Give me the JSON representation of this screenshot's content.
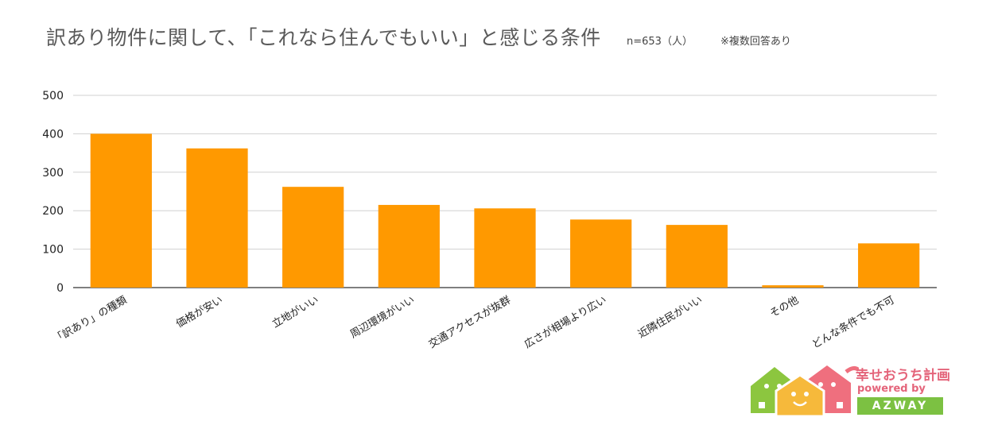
{
  "chart_data": {
    "type": "bar",
    "title": "訳あり物件に関して、「これなら住んでもいい」と感じる条件",
    "subtitle": "n=653（人）",
    "note": "※複数回答あり",
    "categories": [
      "「訳あり」の種類",
      "価格が安い",
      "立地がいい",
      "周辺環境がいい",
      "交通アクセスが抜群",
      "広さが相場より広い",
      "近隣住民がいい",
      "その他",
      "どんな条件でも不可"
    ],
    "values": [
      400,
      362,
      262,
      215,
      206,
      177,
      163,
      6,
      115
    ],
    "ylim": [
      0,
      500
    ],
    "yticks": [
      0,
      100,
      200,
      300,
      400,
      500
    ],
    "grid": true,
    "bar_color": "#ff9900",
    "xlabel": "",
    "ylabel": ""
  },
  "logo": {
    "title": "幸せおうち計画",
    "powered": "powered by",
    "brand": "AZWAY",
    "colors": {
      "green": "#8cc63f",
      "yellow": "#f6b93b",
      "pink": "#ef6f7e"
    }
  }
}
